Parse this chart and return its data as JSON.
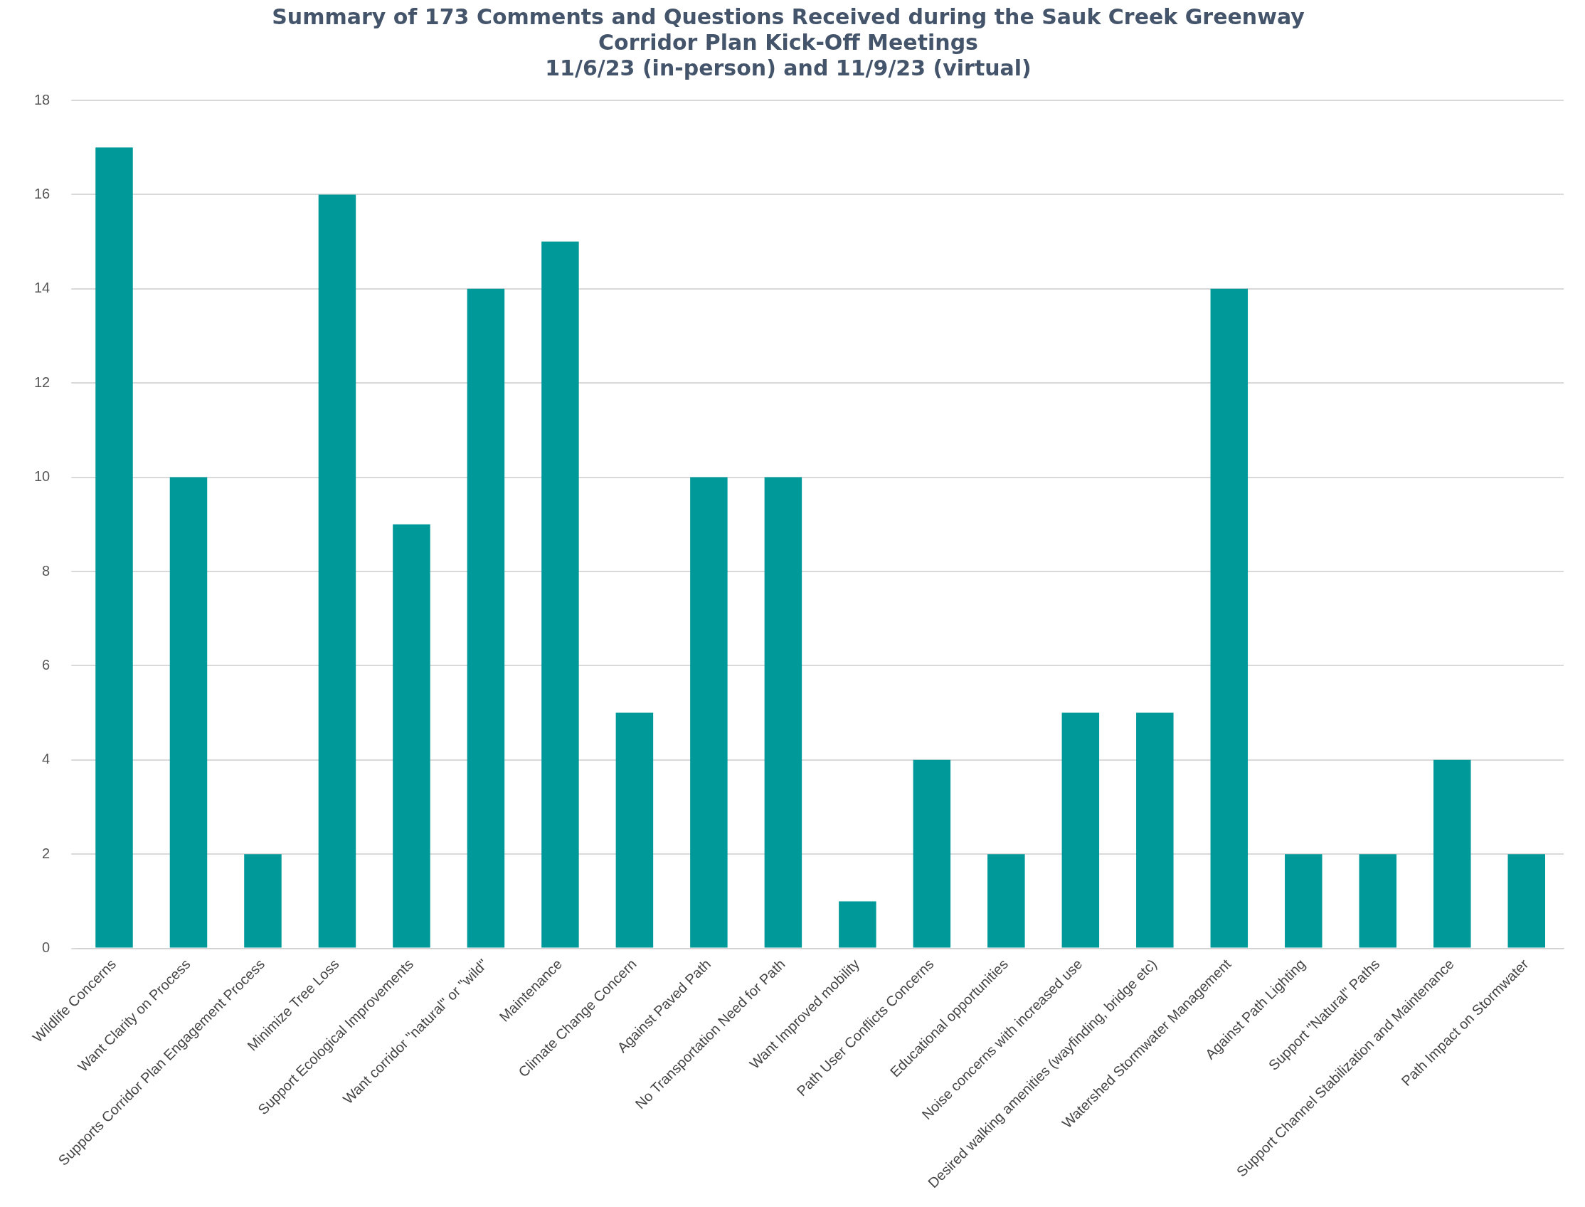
{
  "chart_data": {
    "type": "bar",
    "title": "Summary of 173 Comments and Questions Received during the Sauk Creek Greenway\nCorridor Plan Kick-Off Meetings\n11/6/23 (in-person) and 11/9/23 (virtual)",
    "categories": [
      "Wildlife Concerns",
      "Want Clarity on Process",
      "Supports Corridor Plan Engagement Process",
      "Minimize Tree Loss",
      "Support Ecological Improvements",
      "Want corridor \"natural\" or \"wild\"",
      "Maintenance",
      "Climate Change Concern",
      "Against Paved Path",
      "No Transportation Need for Path",
      "Want Improved mobility",
      "Path User Conflicts Concerns",
      "Educational opportunities",
      "Noise concerns with increased use",
      "Desired walking amenities (wayfinding, bridge etc)",
      "Watershed Stormwater Management",
      "Against Path Lighting",
      "Support \"Natural\" Paths",
      "Support Channel Stabilization and Maintenance",
      "Path Impact on Stormwater"
    ],
    "values": [
      17,
      10,
      2,
      16,
      9,
      14,
      15,
      5,
      10,
      10,
      1,
      4,
      2,
      5,
      5,
      14,
      2,
      2,
      4,
      2
    ],
    "color": "#009999",
    "ylim": [
      0,
      18
    ],
    "yticks": [
      0,
      2,
      4,
      6,
      8,
      10,
      12,
      14,
      16,
      18
    ],
    "grid": "y",
    "legend": false
  }
}
